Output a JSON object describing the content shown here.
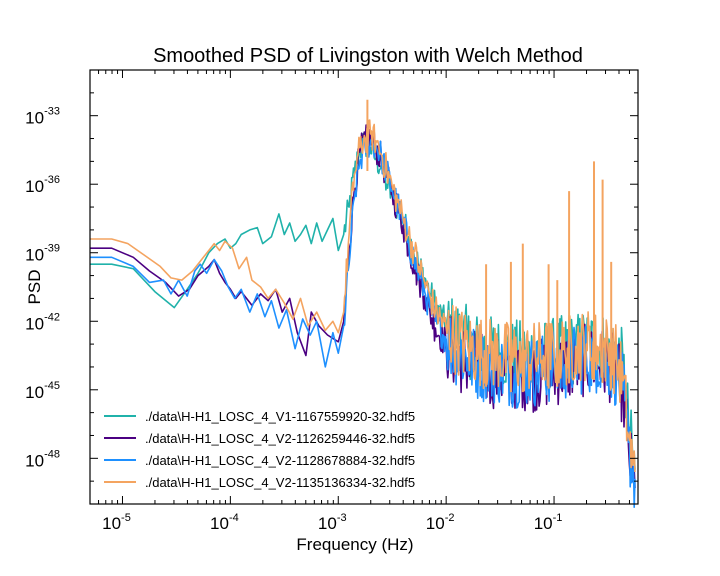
{
  "chart_data": {
    "type": "line",
    "title": "Smoothed PSD of Livingston with Welch Method",
    "xlabel": "Frequency (Hz)",
    "ylabel": "PSD",
    "xscale": "log",
    "yscale": "log",
    "xlim": [
      5e-06,
      0.6
    ],
    "ylim": [
      1e-50,
      1e-31
    ],
    "x_ticks": [
      {
        "base": "10",
        "exp": "-5",
        "value": 1e-05
      },
      {
        "base": "10",
        "exp": "-4",
        "value": 0.0001
      },
      {
        "base": "10",
        "exp": "-3",
        "value": 0.001
      },
      {
        "base": "10",
        "exp": "-2",
        "value": 0.01
      },
      {
        "base": "10",
        "exp": "-1",
        "value": 0.1
      }
    ],
    "y_ticks": [
      {
        "base": "10",
        "exp": "-48",
        "value": -48
      },
      {
        "base": "10",
        "exp": "-45",
        "value": -45
      },
      {
        "base": "10",
        "exp": "-42",
        "value": -42
      },
      {
        "base": "10",
        "exp": "-39",
        "value": -39
      },
      {
        "base": "10",
        "exp": "-36",
        "value": -36
      },
      {
        "base": "10",
        "exp": "-33",
        "value": -33
      }
    ],
    "grid": false,
    "legend_position": "bottom-left",
    "series": [
      {
        "name": "./data\\H-H1_LOSC_4_V1-1167559920-32.hdf5",
        "color": "#20b2aa",
        "log10_points": [
          [
            -5.3,
            -39.5
          ],
          [
            -5.1,
            -39.5
          ],
          [
            -4.9,
            -39.7
          ],
          [
            -4.7,
            -40.7
          ],
          [
            -4.52,
            -41.4
          ],
          [
            -4.4,
            -40.6
          ],
          [
            -4.3,
            -39.9
          ],
          [
            -4.2,
            -39.0
          ],
          [
            -4.12,
            -38.6
          ],
          [
            -4.05,
            -38.4
          ],
          [
            -4.0,
            -38.8
          ],
          [
            -3.95,
            -38.6
          ],
          [
            -3.9,
            -38.2
          ],
          [
            -3.82,
            -38.0
          ],
          [
            -3.75,
            -37.9
          ],
          [
            -3.7,
            -38.6
          ],
          [
            -3.62,
            -38.3
          ],
          [
            -3.55,
            -37.3
          ],
          [
            -3.5,
            -38.2
          ],
          [
            -3.45,
            -37.7
          ],
          [
            -3.4,
            -38.5
          ],
          [
            -3.35,
            -38.2
          ],
          [
            -3.3,
            -37.8
          ],
          [
            -3.25,
            -38.6
          ],
          [
            -3.2,
            -37.7
          ],
          [
            -3.15,
            -38.5
          ],
          [
            -3.1,
            -38.0
          ],
          [
            -3.05,
            -37.5
          ],
          [
            -3.0,
            -38.9
          ],
          [
            -2.95,
            -38.2
          ],
          [
            -2.9,
            -37.0
          ],
          [
            -2.85,
            -35.5
          ],
          [
            -2.8,
            -34.5
          ],
          [
            -2.75,
            -34.2
          ],
          [
            -2.7,
            -34.4
          ],
          [
            -2.65,
            -34.9
          ],
          [
            -2.6,
            -35.2
          ],
          [
            -2.55,
            -36.0
          ],
          [
            -2.5,
            -36.5
          ],
          [
            -2.45,
            -37.0
          ],
          [
            -2.4,
            -37.6
          ],
          [
            -2.35,
            -38.3
          ],
          [
            -2.3,
            -39.0
          ],
          [
            -2.25,
            -39.6
          ],
          [
            -2.2,
            -40.1
          ],
          [
            -2.15,
            -40.8
          ],
          [
            -2.1,
            -41.3
          ],
          [
            -2.0,
            -42.2
          ],
          [
            -1.9,
            -42.6
          ],
          [
            -1.8,
            -42.9
          ],
          [
            -1.7,
            -43.2
          ],
          [
            -1.6,
            -43.3
          ],
          [
            -1.5,
            -43.4
          ],
          [
            -1.4,
            -43.5
          ],
          [
            -1.3,
            -43.5
          ],
          [
            -1.2,
            -43.5
          ],
          [
            -1.1,
            -43.5
          ],
          [
            -1.0,
            -43.4
          ],
          [
            -0.9,
            -43.3
          ],
          [
            -0.8,
            -43.2
          ],
          [
            -0.7,
            -43.0
          ],
          [
            -0.6,
            -43.1
          ],
          [
            -0.5,
            -43.2
          ],
          [
            -0.42,
            -43.4
          ],
          [
            -0.36,
            -44.0
          ],
          [
            -0.31,
            -46.5
          ],
          [
            -0.27,
            -48.0
          ],
          [
            -0.25,
            -48.5
          ]
        ]
      },
      {
        "name": "./data\\H-H1_LOSC_4_V2-1126259446-32.hdf5",
        "color": "#4b0082",
        "log10_points": [
          [
            -5.3,
            -38.8
          ],
          [
            -5.1,
            -38.8
          ],
          [
            -4.9,
            -39.2
          ],
          [
            -4.75,
            -39.8
          ],
          [
            -4.6,
            -40.3
          ],
          [
            -4.48,
            -40.9
          ],
          [
            -4.38,
            -40.6
          ],
          [
            -4.3,
            -40.0
          ],
          [
            -4.2,
            -39.6
          ],
          [
            -4.15,
            -39.3
          ],
          [
            -4.1,
            -39.9
          ],
          [
            -4.05,
            -40.3
          ],
          [
            -4.0,
            -40.6
          ],
          [
            -3.95,
            -41.0
          ],
          [
            -3.9,
            -40.7
          ],
          [
            -3.8,
            -41.3
          ],
          [
            -3.72,
            -40.8
          ],
          [
            -3.65,
            -41.1
          ],
          [
            -3.58,
            -40.6
          ],
          [
            -3.52,
            -41.6
          ],
          [
            -3.45,
            -41.0
          ],
          [
            -3.38,
            -42.5
          ],
          [
            -3.3,
            -43.5
          ],
          [
            -3.25,
            -41.6
          ],
          [
            -3.18,
            -42.2
          ],
          [
            -3.1,
            -42.6
          ],
          [
            -3.0,
            -42.9
          ],
          [
            -2.95,
            -42.0
          ],
          [
            -2.9,
            -38.8
          ],
          [
            -2.85,
            -36.2
          ],
          [
            -2.8,
            -34.6
          ],
          [
            -2.75,
            -34.1
          ],
          [
            -2.7,
            -34.0
          ],
          [
            -2.65,
            -34.4
          ],
          [
            -2.6,
            -34.9
          ],
          [
            -2.55,
            -35.7
          ],
          [
            -2.5,
            -36.4
          ],
          [
            -2.45,
            -37.0
          ],
          [
            -2.4,
            -37.8
          ],
          [
            -2.35,
            -38.7
          ],
          [
            -2.3,
            -39.5
          ],
          [
            -2.25,
            -40.2
          ],
          [
            -2.2,
            -40.9
          ],
          [
            -2.15,
            -41.6
          ],
          [
            -2.1,
            -42.3
          ],
          [
            -2.0,
            -43.0
          ],
          [
            -1.9,
            -43.5
          ],
          [
            -1.8,
            -43.8
          ],
          [
            -1.7,
            -44.0
          ],
          [
            -1.6,
            -44.2
          ],
          [
            -1.5,
            -44.3
          ],
          [
            -1.4,
            -44.3
          ],
          [
            -1.3,
            -44.3
          ],
          [
            -1.2,
            -44.4
          ],
          [
            -1.1,
            -44.3
          ],
          [
            -1.0,
            -44.2
          ],
          [
            -0.9,
            -44.0
          ],
          [
            -0.8,
            -43.9
          ],
          [
            -0.7,
            -43.7
          ],
          [
            -0.6,
            -43.8
          ],
          [
            -0.5,
            -43.9
          ],
          [
            -0.42,
            -44.3
          ],
          [
            -0.36,
            -45.0
          ],
          [
            -0.31,
            -47.5
          ],
          [
            -0.27,
            -49.0
          ],
          [
            -0.25,
            -49.3
          ]
        ]
      },
      {
        "name": "./data\\H-H1_LOSC_4_V2-1128678884-32.hdf5",
        "color": "#1e90ff",
        "log10_points": [
          [
            -5.3,
            -39.2
          ],
          [
            -5.1,
            -39.2
          ],
          [
            -4.9,
            -39.6
          ],
          [
            -4.75,
            -40.3
          ],
          [
            -4.62,
            -40.2
          ],
          [
            -4.55,
            -40.8
          ],
          [
            -4.48,
            -40.2
          ],
          [
            -4.4,
            -40.9
          ],
          [
            -4.33,
            -39.8
          ],
          [
            -4.28,
            -39.5
          ],
          [
            -4.22,
            -39.9
          ],
          [
            -4.15,
            -39.3
          ],
          [
            -4.08,
            -39.8
          ],
          [
            -4.02,
            -40.5
          ],
          [
            -3.96,
            -41.0
          ],
          [
            -3.9,
            -40.6
          ],
          [
            -3.82,
            -41.6
          ],
          [
            -3.75,
            -40.8
          ],
          [
            -3.68,
            -41.8
          ],
          [
            -3.62,
            -41.1
          ],
          [
            -3.55,
            -42.3
          ],
          [
            -3.48,
            -41.5
          ],
          [
            -3.4,
            -43.2
          ],
          [
            -3.33,
            -41.9
          ],
          [
            -3.26,
            -42.6
          ],
          [
            -3.2,
            -42.0
          ],
          [
            -3.12,
            -44.0
          ],
          [
            -3.05,
            -42.5
          ],
          [
            -3.0,
            -43.4
          ],
          [
            -2.95,
            -42.2
          ],
          [
            -2.9,
            -39.5
          ],
          [
            -2.85,
            -36.6
          ],
          [
            -2.8,
            -35.0
          ],
          [
            -2.75,
            -34.4
          ],
          [
            -2.7,
            -34.1
          ],
          [
            -2.65,
            -34.3
          ],
          [
            -2.6,
            -34.8
          ],
          [
            -2.55,
            -35.5
          ],
          [
            -2.5,
            -36.2
          ],
          [
            -2.45,
            -36.9
          ],
          [
            -2.4,
            -37.7
          ],
          [
            -2.35,
            -38.5
          ],
          [
            -2.3,
            -39.3
          ],
          [
            -2.25,
            -40.0
          ],
          [
            -2.2,
            -40.7
          ],
          [
            -2.15,
            -41.4
          ],
          [
            -2.1,
            -42.0
          ],
          [
            -2.0,
            -42.8
          ],
          [
            -1.9,
            -43.3
          ],
          [
            -1.8,
            -43.6
          ],
          [
            -1.7,
            -43.9
          ],
          [
            -1.6,
            -44.0
          ],
          [
            -1.5,
            -44.1
          ],
          [
            -1.4,
            -44.2
          ],
          [
            -1.3,
            -44.2
          ],
          [
            -1.2,
            -44.2
          ],
          [
            -1.1,
            -44.1
          ],
          [
            -1.0,
            -44.0
          ],
          [
            -0.9,
            -43.9
          ],
          [
            -0.8,
            -43.7
          ],
          [
            -0.7,
            -43.6
          ],
          [
            -0.6,
            -43.6
          ],
          [
            -0.5,
            -43.8
          ],
          [
            -0.42,
            -44.2
          ],
          [
            -0.36,
            -45.0
          ],
          [
            -0.31,
            -47.3
          ],
          [
            -0.27,
            -48.6
          ],
          [
            -0.25,
            -48.9
          ]
        ]
      },
      {
        "name": "./data\\H-H1_LOSC_4_V2-1135136334-32.hdf5",
        "color": "#f4a460",
        "log10_points": [
          [
            -5.3,
            -38.4
          ],
          [
            -5.1,
            -38.4
          ],
          [
            -4.95,
            -38.6
          ],
          [
            -4.8,
            -39.1
          ],
          [
            -4.65,
            -39.6
          ],
          [
            -4.55,
            -40.1
          ],
          [
            -4.45,
            -40.2
          ],
          [
            -4.35,
            -39.8
          ],
          [
            -4.25,
            -39.2
          ],
          [
            -4.15,
            -38.6
          ],
          [
            -4.1,
            -38.9
          ],
          [
            -4.05,
            -38.5
          ],
          [
            -3.98,
            -38.8
          ],
          [
            -3.92,
            -39.7
          ],
          [
            -3.85,
            -39.2
          ],
          [
            -3.8,
            -40.2
          ],
          [
            -3.72,
            -40.5
          ],
          [
            -3.65,
            -41.0
          ],
          [
            -3.58,
            -40.6
          ],
          [
            -3.5,
            -41.2
          ],
          [
            -3.42,
            -41.9
          ],
          [
            -3.35,
            -41.0
          ],
          [
            -3.28,
            -42.2
          ],
          [
            -3.2,
            -41.6
          ],
          [
            -3.12,
            -42.4
          ],
          [
            -3.05,
            -42.0
          ],
          [
            -3.0,
            -42.5
          ],
          [
            -2.95,
            -41.6
          ],
          [
            -2.9,
            -38.2
          ],
          [
            -2.85,
            -35.6
          ],
          [
            -2.8,
            -34.4
          ],
          [
            -2.75,
            -34.0
          ],
          [
            -2.7,
            -33.8
          ],
          [
            -2.65,
            -34.1
          ],
          [
            -2.6,
            -34.7
          ],
          [
            -2.55,
            -35.4
          ],
          [
            -2.5,
            -36.1
          ],
          [
            -2.45,
            -36.8
          ],
          [
            -2.4,
            -37.5
          ],
          [
            -2.35,
            -38.2
          ],
          [
            -2.3,
            -38.9
          ],
          [
            -2.25,
            -39.6
          ],
          [
            -2.2,
            -40.3
          ],
          [
            -2.15,
            -40.9
          ],
          [
            -2.1,
            -41.5
          ],
          [
            -2.0,
            -42.3
          ],
          [
            -1.9,
            -42.8
          ],
          [
            -1.8,
            -43.1
          ],
          [
            -1.7,
            -43.3
          ],
          [
            -1.6,
            -43.4
          ],
          [
            -1.5,
            -43.5
          ],
          [
            -1.4,
            -43.6
          ],
          [
            -1.3,
            -43.6
          ],
          [
            -1.2,
            -43.6
          ],
          [
            -1.1,
            -43.5
          ],
          [
            -1.0,
            -43.4
          ],
          [
            -0.9,
            -43.3
          ],
          [
            -0.8,
            -43.1
          ],
          [
            -0.7,
            -43.0
          ],
          [
            -0.6,
            -43.1
          ],
          [
            -0.5,
            -43.3
          ],
          [
            -0.42,
            -43.7
          ],
          [
            -0.36,
            -44.6
          ],
          [
            -0.31,
            -47.0
          ],
          [
            -0.27,
            -48.3
          ],
          [
            -0.25,
            -48.6
          ]
        ]
      }
    ],
    "spikes": [
      {
        "log10_f": -2.73,
        "log10_psd": -32.3
      },
      {
        "log10_f": -1.63,
        "log10_psd": -39.5
      },
      {
        "log10_f": -1.4,
        "log10_psd": -39.4
      },
      {
        "log10_f": -1.29,
        "log10_psd": -38.6
      },
      {
        "log10_f": -1.05,
        "log10_psd": -39.5
      },
      {
        "log10_f": -0.97,
        "log10_psd": -40.2
      },
      {
        "log10_f": -0.86,
        "log10_psd": -36.3
      },
      {
        "log10_f": -0.63,
        "log10_psd": -35.0
      },
      {
        "log10_f": -0.55,
        "log10_psd": -35.8
      },
      {
        "log10_f": -0.47,
        "log10_psd": -39.4
      }
    ]
  }
}
